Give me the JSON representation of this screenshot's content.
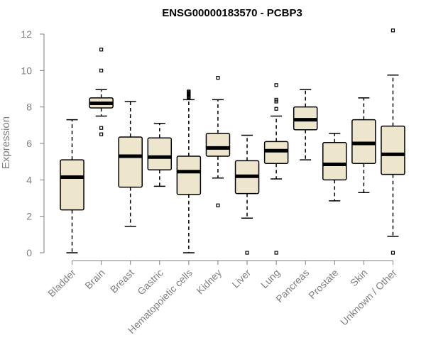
{
  "chart_data": {
    "type": "boxplot",
    "title": "ENSG00000183570 - PCBP3",
    "xlabel": "",
    "ylabel": "Expression",
    "ylim": [
      0,
      12
    ],
    "yticks": [
      0,
      2,
      4,
      6,
      8,
      10,
      12
    ],
    "box_color": "#ede6cd",
    "categories": [
      "Bladder",
      "Brain",
      "Breast",
      "Gastric",
      "Hematopoietic cells",
      "Kidney",
      "Liver",
      "Lung",
      "Pancreas",
      "Prostate",
      "Skin",
      "Unknown / Other"
    ],
    "boxes": [
      {
        "name": "Bladder",
        "min": 0.0,
        "q1": 2.35,
        "median": 4.15,
        "q3": 5.1,
        "max": 7.3,
        "outliers": []
      },
      {
        "name": "Brain",
        "min": 7.5,
        "q1": 7.95,
        "median": 8.2,
        "q3": 8.5,
        "max": 8.95,
        "outliers": [
          6.5,
          6.85,
          10.0,
          11.15
        ]
      },
      {
        "name": "Breast",
        "min": 1.45,
        "q1": 3.6,
        "median": 5.3,
        "q3": 6.35,
        "max": 8.3,
        "outliers": []
      },
      {
        "name": "Gastric",
        "min": 3.65,
        "q1": 4.55,
        "median": 5.25,
        "q3": 6.3,
        "max": 7.1,
        "outliers": []
      },
      {
        "name": "Hematopoietic cells",
        "min": 0.0,
        "q1": 3.2,
        "median": 4.45,
        "q3": 5.3,
        "max": 8.4,
        "outliers": [
          8.5,
          8.55,
          8.6,
          8.65,
          8.7,
          8.75,
          8.8,
          8.85
        ]
      },
      {
        "name": "Kidney",
        "min": 4.1,
        "q1": 5.3,
        "median": 5.75,
        "q3": 6.55,
        "max": 8.4,
        "outliers": [
          2.6,
          9.6
        ]
      },
      {
        "name": "Liver",
        "min": 1.9,
        "q1": 3.25,
        "median": 4.2,
        "q3": 5.05,
        "max": 6.45,
        "outliers": [
          0.0
        ]
      },
      {
        "name": "Lung",
        "min": 4.05,
        "q1": 4.9,
        "median": 5.6,
        "q3": 6.1,
        "max": 7.5,
        "outliers": [
          0.0,
          7.9,
          8.3,
          8.4,
          9.2
        ]
      },
      {
        "name": "Pancreas",
        "min": 5.1,
        "q1": 6.75,
        "median": 7.3,
        "q3": 8.0,
        "max": 8.95,
        "outliers": []
      },
      {
        "name": "Prostate",
        "min": 2.85,
        "q1": 4.0,
        "median": 4.85,
        "q3": 6.05,
        "max": 6.55,
        "outliers": []
      },
      {
        "name": "Skin",
        "min": 3.3,
        "q1": 4.9,
        "median": 6.0,
        "q3": 7.3,
        "max": 8.5,
        "outliers": []
      },
      {
        "name": "Unknown / Other",
        "min": 0.9,
        "q1": 4.3,
        "median": 5.4,
        "q3": 6.95,
        "max": 9.75,
        "outliers": [
          0.0,
          12.2
        ]
      }
    ]
  }
}
